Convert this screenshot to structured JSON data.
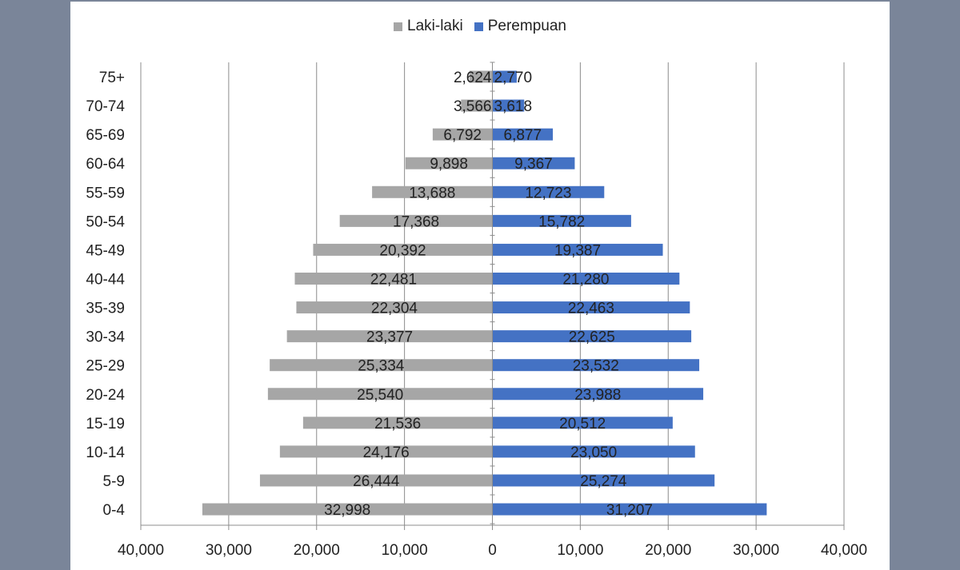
{
  "chart_data": {
    "type": "bar",
    "orientation": "horizontal",
    "subtype": "population-pyramid",
    "categories": [
      "0-4",
      "5-9",
      "10-14",
      "15-19",
      "20-24",
      "25-29",
      "30-34",
      "35-39",
      "40-44",
      "45-49",
      "50-54",
      "55-59",
      "60-64",
      "65-69",
      "70-74",
      "75+"
    ],
    "series": [
      {
        "name": "Laki-laki",
        "color": "#a6a6a6",
        "side": "left",
        "values": [
          32998,
          26444,
          24176,
          21536,
          25540,
          25334,
          23377,
          22304,
          22481,
          20392,
          17368,
          13688,
          9898,
          6792,
          3566,
          2624
        ],
        "labels": [
          "32,998",
          "26,444",
          "24,176",
          "21,536",
          "25,540",
          "25,334",
          "23,377",
          "22,304",
          "22,481",
          "20,392",
          "17,368",
          "13,688",
          "9,898",
          "6,792",
          "3,566",
          "2,624"
        ]
      },
      {
        "name": "Perempuan",
        "color": "#4472c4",
        "side": "right",
        "values": [
          31207,
          25274,
          23050,
          20512,
          23988,
          23532,
          22625,
          22463,
          21280,
          19387,
          15782,
          12723,
          9367,
          6877,
          3618,
          2770
        ],
        "labels": [
          "31,207",
          "25,274",
          "23,050",
          "20,512",
          "23,988",
          "23,532",
          "22,625",
          "22,463",
          "21,280",
          "19,387",
          "15,782",
          "12,723",
          "9,367",
          "6,877",
          "3,618",
          "2,770"
        ]
      }
    ],
    "xlim": [
      -40000,
      40000
    ],
    "xticks": [
      -40000,
      -30000,
      -20000,
      -10000,
      0,
      10000,
      20000,
      30000,
      40000
    ],
    "xtick_labels": [
      "40,000",
      "30,000",
      "20,000",
      "10,000",
      "0",
      "10,000",
      "20,000",
      "30,000",
      "40,000"
    ],
    "title": "",
    "xlabel": "",
    "ylabel": "",
    "grid": "vertical",
    "legend_position": "top"
  }
}
